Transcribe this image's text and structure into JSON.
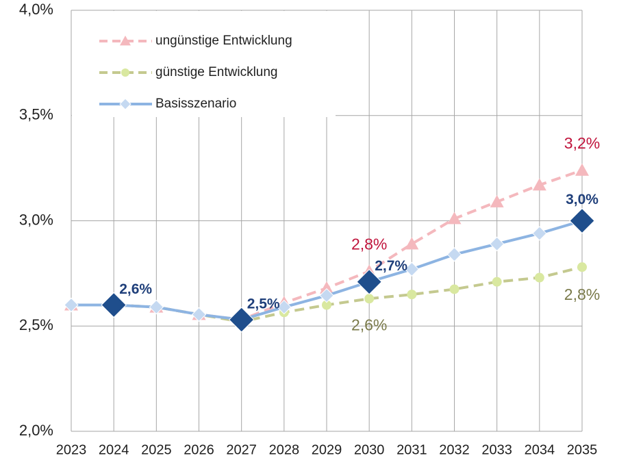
{
  "chart_data": {
    "type": "line",
    "categories": [
      "2023",
      "2024",
      "2025",
      "2026",
      "2027",
      "2028",
      "2029",
      "2030",
      "2031",
      "2032",
      "2033",
      "2034",
      "2035"
    ],
    "ylim": [
      2.0,
      4.0
    ],
    "yticks": [
      {
        "value": 2.0,
        "label": "2,0%"
      },
      {
        "value": 2.5,
        "label": "2,5%"
      },
      {
        "value": 3.0,
        "label": "3,0%"
      },
      {
        "value": 3.5,
        "label": "3,5%"
      },
      {
        "value": 4.0,
        "label": "4,0%"
      }
    ],
    "grid": true,
    "legend": "upper left",
    "series": [
      {
        "name": "ungünstige Entwicklung",
        "color": "#f4b8bd",
        "label_color": "#c0143c",
        "dash": true,
        "marker": "triangle",
        "values": [
          2.6,
          2.6,
          2.59,
          2.555,
          2.53,
          2.61,
          2.68,
          2.76,
          2.89,
          3.01,
          3.09,
          3.17,
          3.24
        ],
        "value_labels": [
          null,
          null,
          null,
          null,
          null,
          null,
          null,
          "2,8%",
          null,
          null,
          null,
          null,
          "3,2%"
        ]
      },
      {
        "name": "günstige Entwicklung",
        "color": "#c4c98f",
        "label_color": "#7a7a4a",
        "dash": true,
        "marker": "circle",
        "values": [
          2.6,
          2.6,
          2.59,
          2.555,
          2.52,
          2.565,
          2.6,
          2.63,
          2.65,
          2.675,
          2.71,
          2.73,
          2.78
        ],
        "value_labels": [
          null,
          null,
          null,
          null,
          null,
          null,
          null,
          "2,6%",
          null,
          null,
          null,
          null,
          "2,8%"
        ]
      },
      {
        "name": "Basisszenario",
        "color": "#8db4e2",
        "label_color": "#1f3f7a",
        "dash": false,
        "marker": "diamond",
        "values": [
          2.6,
          2.6,
          2.59,
          2.555,
          2.53,
          2.59,
          2.645,
          2.71,
          2.77,
          2.84,
          2.89,
          2.94,
          3.0
        ],
        "value_labels": [
          null,
          "2,6%",
          null,
          null,
          "2,5%",
          null,
          null,
          "2,7%",
          null,
          null,
          null,
          null,
          "3,0%"
        ]
      }
    ]
  }
}
